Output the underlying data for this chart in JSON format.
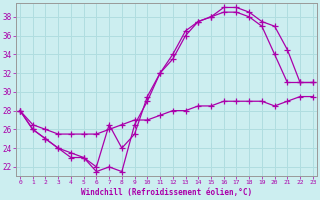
{
  "xlabel": "Windchill (Refroidissement éolien,°C)",
  "bg_color": "#cceef0",
  "grid_color": "#b0dde0",
  "line_color": "#aa00aa",
  "ylim": [
    21.0,
    39.5
  ],
  "xlim": [
    -0.3,
    23.3
  ],
  "yticks": [
    22,
    24,
    26,
    28,
    30,
    32,
    34,
    36,
    38
  ],
  "xticks": [
    0,
    1,
    2,
    3,
    4,
    5,
    6,
    7,
    8,
    9,
    10,
    11,
    12,
    13,
    14,
    15,
    16,
    17,
    18,
    19,
    20,
    21,
    22,
    23
  ],
  "line1_x": [
    0,
    1,
    2,
    3,
    4,
    5,
    6,
    7,
    8,
    9,
    10,
    11,
    12,
    13,
    14,
    15,
    16,
    17,
    18,
    19,
    20,
    21,
    22,
    23
  ],
  "line1_y": [
    28,
    26,
    25,
    24,
    23.5,
    23,
    21.5,
    22,
    21.5,
    26.5,
    29,
    32,
    33.5,
    36,
    37.5,
    38,
    38.5,
    38.5,
    38,
    37,
    34,
    31,
    31,
    31
  ],
  "line2_x": [
    0,
    1,
    2,
    3,
    4,
    5,
    6,
    7,
    8,
    9,
    10,
    11,
    12,
    13,
    14,
    15,
    16,
    17,
    18,
    19,
    20,
    21,
    22,
    23
  ],
  "line2_y": [
    28,
    26,
    25,
    24,
    23,
    23,
    22,
    26.5,
    24,
    25.5,
    29.5,
    32,
    34,
    36.5,
    37.5,
    38,
    39,
    39,
    38.5,
    37.5,
    37,
    34.5,
    31,
    31
  ],
  "line3_x": [
    0,
    1,
    2,
    3,
    4,
    5,
    6,
    7,
    8,
    9,
    10,
    11,
    12,
    13,
    14,
    15,
    16,
    17,
    18,
    19,
    20,
    21,
    22,
    23
  ],
  "line3_y": [
    28,
    26.5,
    26,
    25.5,
    25.5,
    25.5,
    25.5,
    26,
    26.5,
    27,
    27,
    27.5,
    28,
    28,
    28.5,
    28.5,
    29,
    29,
    29,
    29,
    28.5,
    29,
    29.5,
    29.5
  ]
}
